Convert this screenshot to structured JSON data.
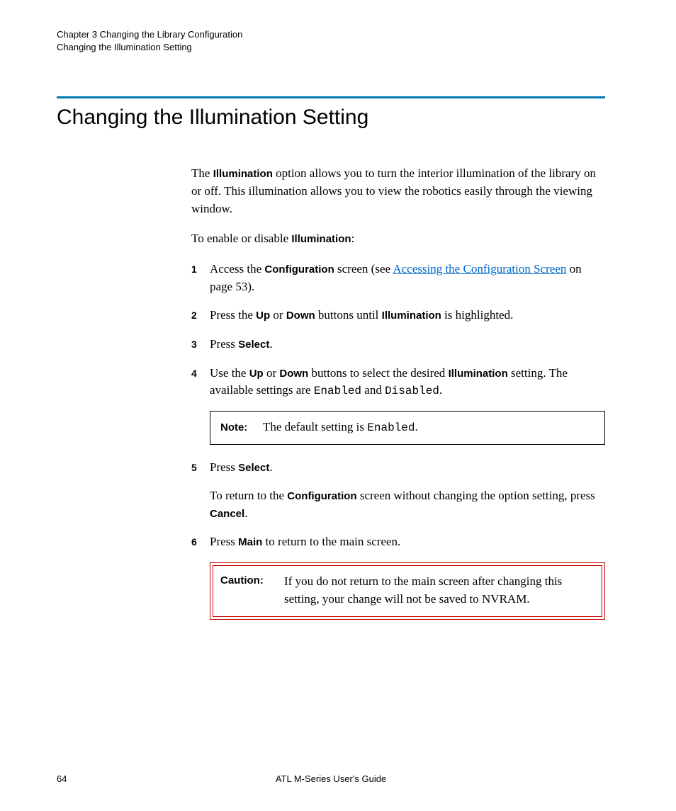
{
  "header": {
    "line1": "Chapter 3  Changing the Library Configuration",
    "line2": "Changing the Illumination Setting"
  },
  "title": "Changing the Illumination Setting",
  "intro": {
    "pre": "The ",
    "bold": "Illumination",
    "post": " option allows you to turn the interior illumination of the library on or off. This illumination allows you to view the robotics easily through the viewing window."
  },
  "lead": {
    "pre": "To enable or disable ",
    "bold": "Illumination",
    "post": ":"
  },
  "steps": {
    "s1": {
      "num": "1",
      "t1": "Access the ",
      "b1": "Configuration",
      "t2": " screen (see ",
      "link": "Accessing the Configuration Screen",
      "t3": " on page 53)."
    },
    "s2": {
      "num": "2",
      "t1": "Press the ",
      "b1": "Up",
      "t2": " or ",
      "b2": "Down",
      "t3": " buttons until ",
      "b3": "Illumination",
      "t4": " is highlighted."
    },
    "s3": {
      "num": "3",
      "t1": "Press ",
      "b1": "Select",
      "t2": "."
    },
    "s4": {
      "num": "4",
      "t1": "Use the ",
      "b1": "Up",
      "t2": " or ",
      "b2": "Down",
      "t3": " buttons to select the desired ",
      "b3": "Illumination",
      "t4": " setting. The available settings are ",
      "m1": "Enabled",
      "t5": " and ",
      "m2": "Disabled",
      "t6": "."
    },
    "s5": {
      "num": "5",
      "t1": "Press ",
      "b1": "Select",
      "t2": "."
    },
    "s5b": {
      "t1": "To return to the ",
      "b1": "Configuration",
      "t2": " screen without changing the option setting, press ",
      "b2": "Cancel",
      "t3": "."
    },
    "s6": {
      "num": "6",
      "t1": "Press ",
      "b1": "Main",
      "t2": " to return to the main screen."
    }
  },
  "note": {
    "label": "Note:",
    "t1": "The default setting is ",
    "m1": "Enabled",
    "t2": "."
  },
  "caution": {
    "label": "Caution:",
    "text": "If you do not return to the main screen after changing this setting, your change will not be saved to NVRAM."
  },
  "footer": {
    "page": "64",
    "center": "ATL M-Series User's Guide"
  },
  "colors": {
    "rule": "#0078b4",
    "link": "#0066cc",
    "caution_border": "#cc0000"
  }
}
